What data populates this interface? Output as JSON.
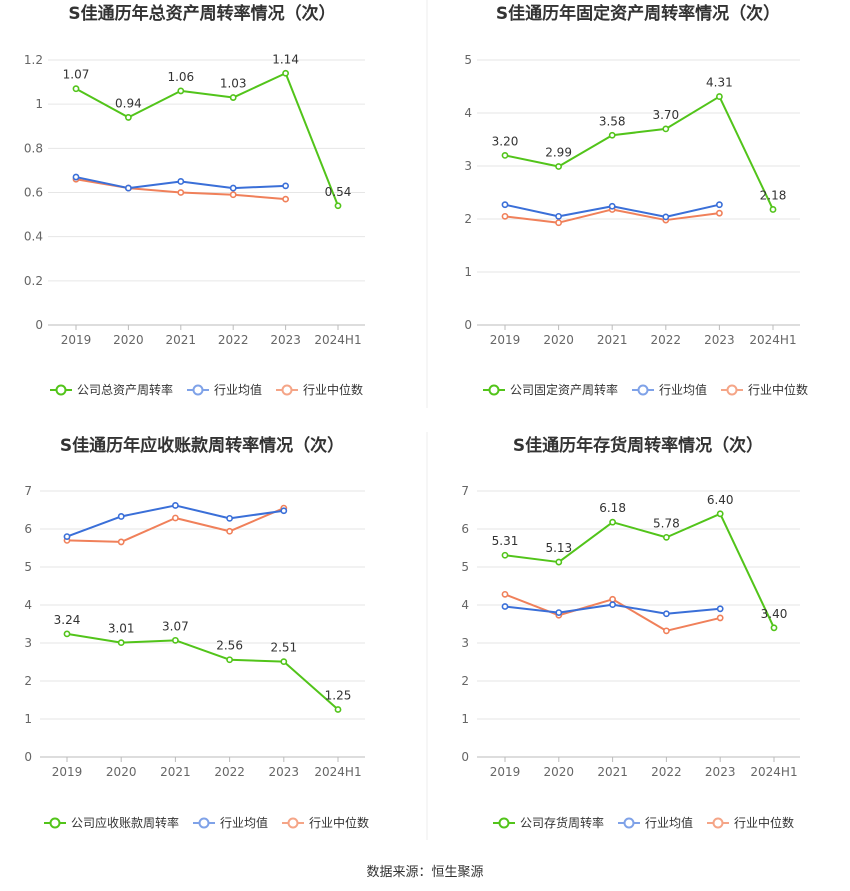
{
  "colors": {
    "company": "#52c41a",
    "industry_avg": "#3a6fd8",
    "industry_median": "#f0805a",
    "legend_avg": "#7fa2e8",
    "legend_median": "#f5a587",
    "grid": "#e6e6e6",
    "axis": "#bbbbbb"
  },
  "legend": {
    "avg": "行业均值",
    "median": "行业中位数"
  },
  "source": "数据来源：恒生聚源",
  "chart_data": [
    {
      "type": "line",
      "title": "S佳通历年总资产周转率情况（次）",
      "categories": [
        "2019",
        "2020",
        "2021",
        "2022",
        "2023",
        "2024H1"
      ],
      "ylim": [
        0,
        1.2
      ],
      "yticks": [
        "0",
        "0.2",
        "0.4",
        "0.6",
        "0.8",
        "1",
        "1.2"
      ],
      "series": [
        {
          "name": "公司总资产周转率",
          "role": "company",
          "values": [
            1.07,
            0.94,
            1.06,
            1.03,
            1.14,
            0.54
          ],
          "labels": [
            "1.07",
            "0.94",
            "1.06",
            "1.03",
            "1.14",
            "0.54"
          ]
        },
        {
          "name": "行业均值",
          "role": "avg",
          "values": [
            0.67,
            0.62,
            0.65,
            0.62,
            0.63,
            null
          ]
        },
        {
          "name": "行业中位数",
          "role": "median",
          "values": [
            0.66,
            0.62,
            0.6,
            0.59,
            0.57,
            null
          ]
        }
      ]
    },
    {
      "type": "line",
      "title": "S佳通历年固定资产周转率情况（次）",
      "categories": [
        "2019",
        "2020",
        "2021",
        "2022",
        "2023",
        "2024H1"
      ],
      "ylim": [
        0,
        5
      ],
      "yticks": [
        "0",
        "1",
        "2",
        "3",
        "4",
        "5"
      ],
      "series": [
        {
          "name": "公司固定资产周转率",
          "role": "company",
          "values": [
            3.2,
            2.99,
            3.58,
            3.7,
            4.31,
            2.18
          ],
          "labels": [
            "3.20",
            "2.99",
            "3.58",
            "3.70",
            "4.31",
            "2.18"
          ]
        },
        {
          "name": "行业均值",
          "role": "avg",
          "values": [
            2.27,
            2.05,
            2.24,
            2.04,
            2.27,
            null
          ]
        },
        {
          "name": "行业中位数",
          "role": "median",
          "values": [
            2.05,
            1.93,
            2.18,
            1.98,
            2.11,
            null
          ]
        }
      ]
    },
    {
      "type": "line",
      "title": "S佳通历年应收账款周转率情况（次）",
      "categories": [
        "2019",
        "2020",
        "2021",
        "2022",
        "2023",
        "2024H1"
      ],
      "ylim": [
        0,
        7
      ],
      "yticks": [
        "0",
        "1",
        "2",
        "3",
        "4",
        "5",
        "6",
        "7"
      ],
      "series": [
        {
          "name": "公司应收账款周转率",
          "role": "company",
          "values": [
            3.24,
            3.01,
            3.07,
            2.56,
            2.51,
            1.25
          ],
          "labels": [
            "3.24",
            "3.01",
            "3.07",
            "2.56",
            "2.51",
            "1.25"
          ]
        },
        {
          "name": "行业均值",
          "role": "avg",
          "values": [
            5.8,
            6.33,
            6.62,
            6.28,
            6.48,
            null
          ]
        },
        {
          "name": "行业中位数",
          "role": "median",
          "values": [
            5.7,
            5.66,
            6.29,
            5.94,
            6.55,
            null
          ]
        }
      ]
    },
    {
      "type": "line",
      "title": "S佳通历年存货周转率情况（次）",
      "categories": [
        "2019",
        "2020",
        "2021",
        "2022",
        "2023",
        "2024H1"
      ],
      "ylim": [
        0,
        7
      ],
      "yticks": [
        "0",
        "1",
        "2",
        "3",
        "4",
        "5",
        "6",
        "7"
      ],
      "series": [
        {
          "name": "公司存货周转率",
          "role": "company",
          "values": [
            5.31,
            5.13,
            6.18,
            5.78,
            6.4,
            3.4
          ],
          "labels": [
            "5.31",
            "5.13",
            "6.18",
            "5.78",
            "6.40",
            "3.40"
          ]
        },
        {
          "name": "行业均值",
          "role": "avg",
          "values": [
            3.96,
            3.8,
            4.01,
            3.77,
            3.9,
            null
          ]
        },
        {
          "name": "行业中位数",
          "role": "median",
          "values": [
            4.28,
            3.73,
            4.15,
            3.32,
            3.66,
            null
          ]
        }
      ]
    }
  ]
}
